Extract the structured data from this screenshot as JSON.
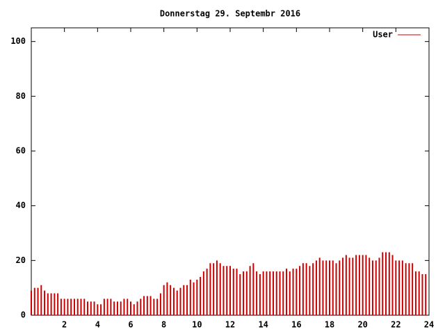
{
  "chart_data": {
    "type": "impulse",
    "title": "Donnerstag 29. Septembr 2016",
    "x": [
      0,
      0.2,
      0.4,
      0.6,
      0.8,
      1,
      1.2,
      1.4,
      1.6,
      1.8,
      2,
      2.2,
      2.4,
      2.6,
      2.8,
      3,
      3.2,
      3.4,
      3.6,
      3.8,
      4,
      4.2,
      4.4,
      4.6,
      4.8,
      5,
      5.2,
      5.4,
      5.6,
      5.8,
      6,
      6.2,
      6.4,
      6.6,
      6.8,
      7,
      7.2,
      7.4,
      7.6,
      7.8,
      8,
      8.2,
      8.4,
      8.6,
      8.8,
      9,
      9.2,
      9.4,
      9.6,
      9.8,
      10,
      10.2,
      10.4,
      10.6,
      10.8,
      11,
      11.2,
      11.4,
      11.6,
      11.8,
      12,
      12.2,
      12.4,
      12.6,
      12.8,
      13,
      13.2,
      13.4,
      13.6,
      13.8,
      14,
      14.2,
      14.4,
      14.6,
      14.8,
      15,
      15.2,
      15.4,
      15.6,
      15.8,
      16,
      16.2,
      16.4,
      16.6,
      16.8,
      17,
      17.2,
      17.4,
      17.6,
      17.8,
      18,
      18.2,
      18.4,
      18.6,
      18.8,
      19,
      19.2,
      19.4,
      19.6,
      19.8,
      20,
      20.2,
      20.4,
      20.6,
      20.8,
      21,
      21.2,
      21.4,
      21.6,
      21.8,
      22,
      22.2,
      22.4,
      22.6,
      22.8,
      23,
      23.2,
      23.4,
      23.6,
      23.8
    ],
    "series": [
      {
        "name": "User",
        "color": "#cc0000",
        "values": [
          9,
          10,
          10,
          11,
          9,
          8,
          8,
          8,
          8,
          6,
          6,
          6,
          6,
          6,
          6,
          6,
          6,
          5,
          5,
          5,
          4,
          4,
          6,
          6,
          6,
          5,
          5,
          5,
          6,
          6,
          5,
          4,
          5,
          6,
          7,
          7,
          7,
          6,
          6,
          8,
          11,
          12,
          11,
          10,
          9,
          10,
          11,
          11,
          13,
          12,
          13,
          14,
          16,
          17,
          19,
          19,
          20,
          19,
          18,
          18,
          18,
          17,
          17,
          15,
          16,
          16,
          18,
          19,
          16,
          15,
          16,
          16,
          16,
          16,
          16,
          16,
          16,
          17,
          16,
          17,
          17,
          18,
          19,
          19,
          18,
          19,
          20,
          21,
          20,
          20,
          20,
          20,
          19,
          20,
          21,
          22,
          21,
          21,
          22,
          22,
          22,
          22,
          21,
          20,
          20,
          21,
          23,
          23,
          23,
          22,
          20,
          20,
          20,
          19,
          19,
          19,
          16,
          16,
          15,
          15
        ]
      }
    ],
    "xlim": [
      0,
      24
    ],
    "xticks": [
      2,
      4,
      6,
      8,
      10,
      12,
      14,
      16,
      18,
      20,
      22,
      24
    ],
    "ylim": [
      0,
      105
    ],
    "yticks": [
      0,
      20,
      40,
      60,
      80,
      100
    ],
    "legend": "top-right"
  }
}
